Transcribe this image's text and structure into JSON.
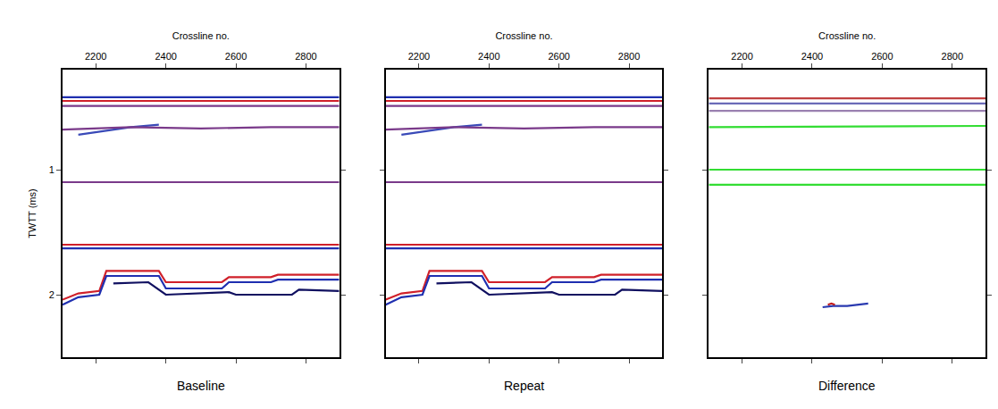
{
  "chart_data": [
    {
      "type": "line",
      "title": "Baseline",
      "x_label": "Crossline no.",
      "y_label": "TWTT (ms)",
      "xlim": [
        2105,
        2895
      ],
      "xticks": [
        2200,
        2400,
        2600,
        2800
      ],
      "ylim": [
        0.2,
        2.5
      ],
      "yticks": [
        1,
        2
      ],
      "line_style": "solid",
      "series": [
        {
          "color": "#1f2fb0",
          "x": [
            2105,
            2895
          ],
          "values": [
            0.42,
            0.42
          ]
        },
        {
          "color": "#d0202a",
          "x": [
            2105,
            2895
          ],
          "values": [
            0.45,
            0.45
          ]
        },
        {
          "color": "#7a3a8a",
          "x": [
            2105,
            2895
          ],
          "values": [
            0.49,
            0.49
          ]
        },
        {
          "color": "#3a4ab8",
          "x": [
            2150,
            2220,
            2300,
            2380
          ],
          "values": [
            0.72,
            0.69,
            0.66,
            0.64
          ]
        },
        {
          "color": "#7a3a8a",
          "x": [
            2105,
            2300,
            2500,
            2700,
            2895
          ],
          "values": [
            0.68,
            0.66,
            0.67,
            0.66,
            0.66
          ]
        },
        {
          "color": "#7a3a8a",
          "x": [
            2105,
            2400,
            2700,
            2895
          ],
          "values": [
            1.1,
            1.1,
            1.1,
            1.1
          ]
        },
        {
          "color": "#d0202a",
          "x": [
            2105,
            2895
          ],
          "values": [
            1.6,
            1.6
          ]
        },
        {
          "color": "#1f2fb0",
          "x": [
            2105,
            2895
          ],
          "values": [
            1.63,
            1.63
          ]
        },
        {
          "color": "#d0202a",
          "x": [
            2105,
            2150,
            2210,
            2230,
            2380,
            2400,
            2560,
            2580,
            2700,
            2720,
            2895
          ],
          "values": [
            2.04,
            1.99,
            1.97,
            1.81,
            1.81,
            1.9,
            1.9,
            1.86,
            1.86,
            1.84,
            1.84
          ]
        },
        {
          "color": "#1f2fb0",
          "x": [
            2105,
            2150,
            2210,
            2230,
            2380,
            2400,
            2560,
            2580,
            2700,
            2720,
            2895
          ],
          "values": [
            2.08,
            2.02,
            2.0,
            1.85,
            1.85,
            1.95,
            1.95,
            1.9,
            1.9,
            1.88,
            1.88
          ]
        },
        {
          "color": "#101060",
          "x": [
            2250,
            2350,
            2400,
            2580,
            2600,
            2760,
            2780,
            2895
          ],
          "values": [
            1.91,
            1.9,
            2.0,
            1.98,
            2.0,
            2.0,
            1.96,
            1.97
          ]
        }
      ]
    },
    {
      "type": "line",
      "title": "Repeat",
      "x_label": "Crossline no.",
      "xlim": [
        2105,
        2895
      ],
      "xticks": [
        2200,
        2400,
        2600,
        2800
      ],
      "ylim": [
        0.2,
        2.5
      ],
      "yticks": [
        1,
        2
      ],
      "tick_labels": "x",
      "line_style": "solid",
      "series": [
        {
          "color": "#1f2fb0",
          "x": [
            2105,
            2895
          ],
          "values": [
            0.42,
            0.42
          ]
        },
        {
          "color": "#d0202a",
          "x": [
            2105,
            2895
          ],
          "values": [
            0.45,
            0.45
          ]
        },
        {
          "color": "#7a3a8a",
          "x": [
            2105,
            2895
          ],
          "values": [
            0.49,
            0.49
          ]
        },
        {
          "color": "#3a4ab8",
          "x": [
            2150,
            2220,
            2300,
            2380
          ],
          "values": [
            0.72,
            0.69,
            0.66,
            0.64
          ]
        },
        {
          "color": "#7a3a8a",
          "x": [
            2105,
            2300,
            2500,
            2700,
            2895
          ],
          "values": [
            0.68,
            0.66,
            0.67,
            0.66,
            0.66
          ]
        },
        {
          "color": "#7a3a8a",
          "x": [
            2105,
            2400,
            2700,
            2895
          ],
          "values": [
            1.1,
            1.1,
            1.1,
            1.1
          ]
        },
        {
          "color": "#d0202a",
          "x": [
            2105,
            2895
          ],
          "values": [
            1.6,
            1.6
          ]
        },
        {
          "color": "#1f2fb0",
          "x": [
            2105,
            2895
          ],
          "values": [
            1.63,
            1.63
          ]
        },
        {
          "color": "#d0202a",
          "x": [
            2105,
            2150,
            2210,
            2230,
            2380,
            2400,
            2560,
            2580,
            2700,
            2720,
            2895
          ],
          "values": [
            2.04,
            1.99,
            1.97,
            1.81,
            1.81,
            1.9,
            1.9,
            1.86,
            1.86,
            1.84,
            1.84
          ]
        },
        {
          "color": "#1f2fb0",
          "x": [
            2105,
            2150,
            2210,
            2230,
            2380,
            2400,
            2560,
            2580,
            2700,
            2720,
            2895
          ],
          "values": [
            2.08,
            2.02,
            2.0,
            1.85,
            1.85,
            1.95,
            1.95,
            1.9,
            1.9,
            1.88,
            1.88
          ]
        },
        {
          "color": "#101060",
          "x": [
            2250,
            2350,
            2400,
            2580,
            2600,
            2760,
            2780,
            2895
          ],
          "values": [
            1.91,
            1.9,
            2.0,
            1.98,
            2.0,
            2.0,
            1.96,
            1.97
          ]
        }
      ]
    },
    {
      "type": "line",
      "title": "Difference",
      "x_label": "Crossline no.",
      "xlim": [
        2105,
        2895
      ],
      "xticks": [
        2200,
        2400,
        2600,
        2800
      ],
      "ylim": [
        0.2,
        2.5
      ],
      "yticks": [
        1,
        2
      ],
      "tick_labels": "x",
      "line_style": "solid",
      "series": [
        {
          "color": "#c04040",
          "x": [
            2105,
            2895
          ],
          "values": [
            0.43,
            0.43
          ]
        },
        {
          "color": "#6a6ab8",
          "x": [
            2105,
            2895
          ],
          "values": [
            0.47,
            0.47
          ]
        },
        {
          "color": "#9a80b0",
          "x": [
            2105,
            2895
          ],
          "values": [
            0.53,
            0.53
          ]
        },
        {
          "color": "#33dd33",
          "x": [
            2105,
            2895
          ],
          "values": [
            0.66,
            0.65
          ]
        },
        {
          "color": "#33dd33",
          "x": [
            2105,
            2895
          ],
          "values": [
            1.0,
            1.0
          ]
        },
        {
          "color": "#33dd33",
          "x": [
            2105,
            2895
          ],
          "values": [
            1.12,
            1.12
          ]
        },
        {
          "color": "#2a3ab0",
          "x": [
            2430,
            2460,
            2500,
            2560
          ],
          "values": [
            2.1,
            2.09,
            2.09,
            2.07
          ]
        },
        {
          "color": "#c01818",
          "x": [
            2445,
            2455,
            2465
          ],
          "values": [
            2.08,
            2.07,
            2.08
          ]
        }
      ]
    }
  ]
}
